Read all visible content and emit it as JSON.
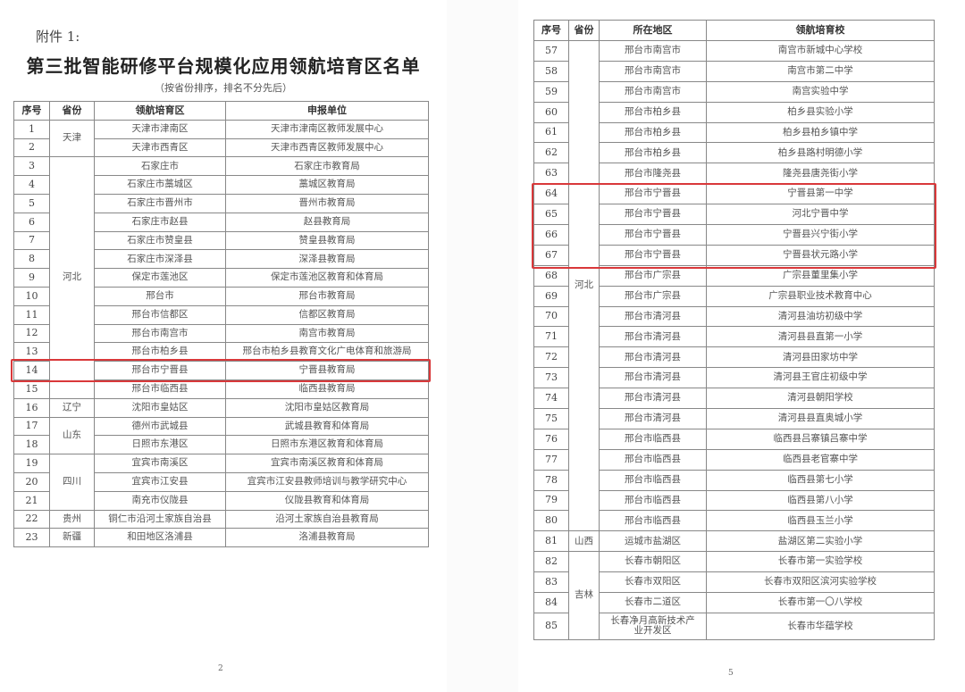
{
  "left_page": {
    "attachment_label": "附件 1:",
    "title": "第三批智能研修平台规模化应用领航培育区名单",
    "subtitle": "（按省份排序，排名不分先后）",
    "headers": [
      "序号",
      "省份",
      "领航培育区",
      "申报单位"
    ],
    "groups": [
      {
        "province": "天津",
        "rows": [
          [
            "1",
            "天津市津南区",
            "天津市津南区教师发展中心"
          ],
          [
            "2",
            "天津市西青区",
            "天津市西青区教师发展中心"
          ]
        ]
      },
      {
        "province": "河北",
        "rows": [
          [
            "3",
            "石家庄市",
            "石家庄市教育局"
          ],
          [
            "4",
            "石家庄市藁城区",
            "藁城区教育局"
          ],
          [
            "5",
            "石家庄市晋州市",
            "晋州市教育局"
          ],
          [
            "6",
            "石家庄市赵县",
            "赵县教育局"
          ],
          [
            "7",
            "石家庄市赞皇县",
            "赞皇县教育局"
          ],
          [
            "8",
            "石家庄市深泽县",
            "深泽县教育局"
          ],
          [
            "9",
            "保定市莲池区",
            "保定市莲池区教育和体育局"
          ],
          [
            "10",
            "邢台市",
            "邢台市教育局"
          ],
          [
            "11",
            "邢台市信都区",
            "信都区教育局"
          ],
          [
            "12",
            "邢台市南宫市",
            "南宫市教育局"
          ],
          [
            "13",
            "邢台市柏乡县",
            "邢台市柏乡县教育文化广电体育和旅游局"
          ],
          [
            "14",
            "邢台市宁晋县",
            "宁晋县教育局"
          ],
          [
            "15",
            "邢台市临西县",
            "临西县教育局"
          ]
        ]
      },
      {
        "province": "辽宁",
        "rows": [
          [
            "16",
            "沈阳市皇姑区",
            "沈阳市皇姑区教育局"
          ]
        ]
      },
      {
        "province": "山东",
        "rows": [
          [
            "17",
            "德州市武城县",
            "武城县教育和体育局"
          ],
          [
            "18",
            "日照市东港区",
            "日照市东港区教育和体育局"
          ]
        ]
      },
      {
        "province": "四川",
        "rows": [
          [
            "19",
            "宜宾市南溪区",
            "宜宾市南溪区教育和体育局"
          ],
          [
            "20",
            "宜宾市江安县",
            "宜宾市江安县教师培训与教学研究中心"
          ],
          [
            "21",
            "南充市仪陇县",
            "仪陇县教育和体育局"
          ]
        ]
      },
      {
        "province": "贵州",
        "rows": [
          [
            "22",
            "铜仁市沿河土家族自治县",
            "沿河土家族自治县教育局"
          ]
        ]
      },
      {
        "province": "新疆",
        "rows": [
          [
            "23",
            "和田地区洛浦县",
            "洛浦县教育局"
          ]
        ]
      }
    ],
    "highlighted_rows": [
      "14"
    ],
    "highlight_color": "#d9383a",
    "page_number": "2"
  },
  "right_page": {
    "headers": [
      "序号",
      "省份",
      "所在地区",
      "领航培育校"
    ],
    "groups": [
      {
        "province": "河北",
        "rows": [
          [
            "57",
            "邢台市南宫市",
            "南宫市新城中心学校"
          ],
          [
            "58",
            "邢台市南宫市",
            "南宫市第二中学"
          ],
          [
            "59",
            "邢台市南宫市",
            "南宫实验中学"
          ],
          [
            "60",
            "邢台市柏乡县",
            "柏乡县实验小学"
          ],
          [
            "61",
            "邢台市柏乡县",
            "柏乡县柏乡镇中学"
          ],
          [
            "62",
            "邢台市柏乡县",
            "柏乡县路村明德小学"
          ],
          [
            "63",
            "邢台市隆尧县",
            "隆尧县唐尧街小学"
          ],
          [
            "64",
            "邢台市宁晋县",
            "宁晋县第一中学"
          ],
          [
            "65",
            "邢台市宁晋县",
            "河北宁晋中学"
          ],
          [
            "66",
            "邢台市宁晋县",
            "宁晋县兴宁街小学"
          ],
          [
            "67",
            "邢台市宁晋县",
            "宁晋县状元路小学"
          ],
          [
            "68",
            "邢台市广宗县",
            "广宗县董里集小学"
          ],
          [
            "69",
            "邢台市广宗县",
            "广宗县职业技术教育中心"
          ],
          [
            "70",
            "邢台市清河县",
            "清河县油坊初级中学"
          ],
          [
            "71",
            "邢台市清河县",
            "清河县县直第一小学"
          ],
          [
            "72",
            "邢台市清河县",
            "清河县田家坊中学"
          ],
          [
            "73",
            "邢台市清河县",
            "清河县王官庄初级中学"
          ],
          [
            "74",
            "邢台市清河县",
            "清河县朝阳学校"
          ],
          [
            "75",
            "邢台市清河县",
            "清河县县直奥城小学"
          ],
          [
            "76",
            "邢台市临西县",
            "临西县吕寨镇吕寨中学"
          ],
          [
            "77",
            "邢台市临西县",
            "临西县老官寨中学"
          ],
          [
            "78",
            "邢台市临西县",
            "临西县第七小学"
          ],
          [
            "79",
            "邢台市临西县",
            "临西县第八小学"
          ],
          [
            "80",
            "邢台市临西县",
            "临西县玉兰小学"
          ]
        ]
      },
      {
        "province": "山西",
        "rows": [
          [
            "81",
            "运城市盐湖区",
            "盐湖区第二实验小学"
          ]
        ]
      },
      {
        "province": "吉林",
        "rows": [
          [
            "82",
            "长春市朝阳区",
            "长春市第一实验学校"
          ],
          [
            "83",
            "长春市双阳区",
            "长春市双阳区滨河实验学校"
          ],
          [
            "84",
            "长春市二道区",
            "长春市第一〇八学校"
          ],
          [
            "85",
            "长春净月高新技术产业开发区",
            "长春市华蕴学校"
          ]
        ]
      }
    ],
    "highlighted_rows": [
      "64",
      "65",
      "66",
      "67"
    ],
    "highlight_color": "#d9383a",
    "page_number": "5"
  }
}
